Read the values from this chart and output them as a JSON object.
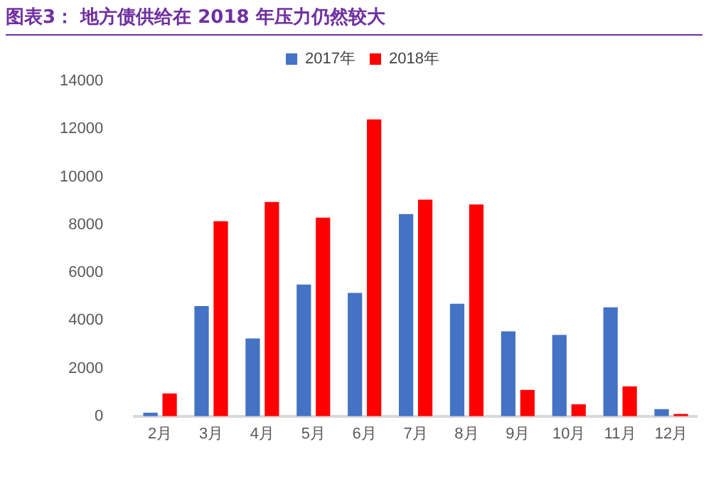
{
  "chart_data": {
    "type": "bar",
    "title": "图表3：  地方债供给在 2018 年压力仍然较大",
    "categories": [
      "2月",
      "3月",
      "4月",
      "5月",
      "6月",
      "7月",
      "8月",
      "9月",
      "10月",
      "11月",
      "12月"
    ],
    "series": [
      {
        "name": "2017年",
        "color": "#4472c4",
        "values": [
          150,
          4600,
          3250,
          5500,
          5150,
          8450,
          4700,
          3550,
          3400,
          4550,
          300
        ]
      },
      {
        "name": "2018年",
        "color": "#ff0000",
        "values": [
          950,
          8150,
          8950,
          8300,
          12400,
          9050,
          8850,
          1100,
          500,
          1250,
          100
        ]
      }
    ],
    "ylim": [
      0,
      14000
    ],
    "yticks": [
      0,
      2000,
      4000,
      6000,
      8000,
      10000,
      12000,
      14000
    ],
    "grid": false,
    "legend": "top"
  }
}
